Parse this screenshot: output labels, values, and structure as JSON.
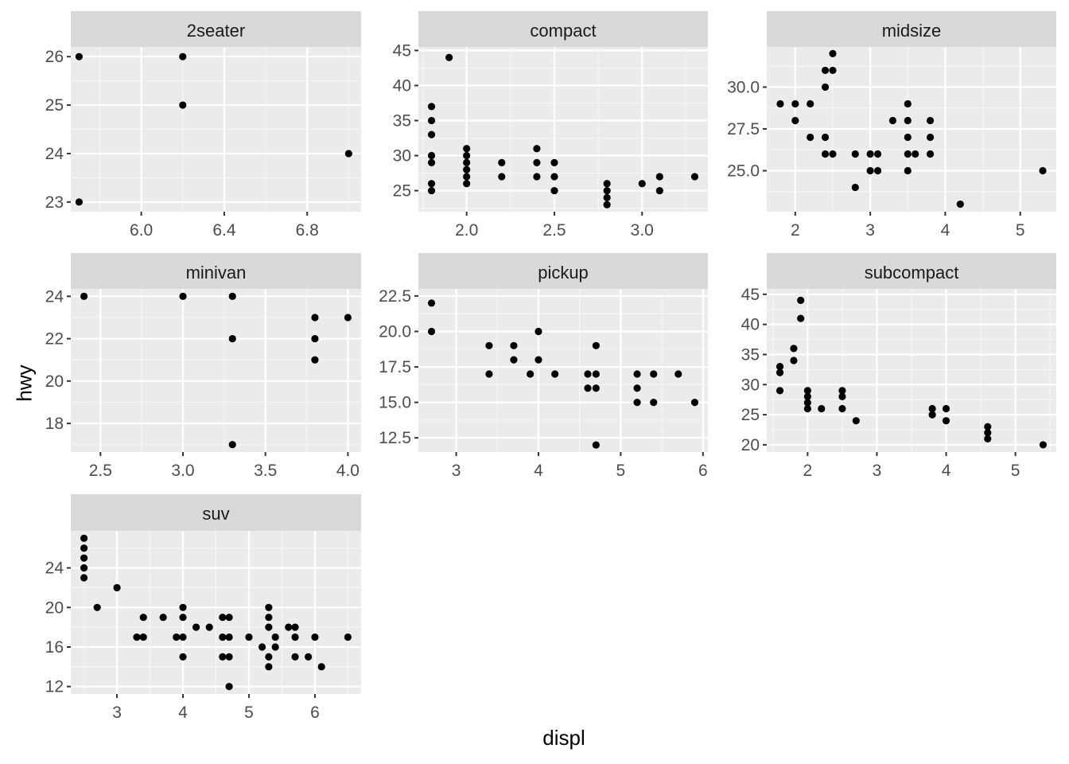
{
  "chart_data": {
    "type": "scatter",
    "layout": "facet_wrap",
    "xlabel": "displ",
    "ylabel": "hwy",
    "colors": {
      "panel_background": "#ebebeb",
      "grid_major": "#ffffff",
      "strip_background": "#d9d9d9",
      "point": "#000000",
      "tick_text": "#4d4d4d",
      "title_text": "#000000"
    },
    "panels": [
      {
        "name": "2seater",
        "xlim": [
          5.66,
          7.06
        ],
        "ylim": [
          22.8,
          26.2
        ],
        "xticks": [
          6.0,
          6.4,
          6.8
        ],
        "xtick_labels": [
          "6.0",
          "6.4",
          "6.8"
        ],
        "yticks": [
          23,
          24,
          25,
          26
        ],
        "ytick_labels": [
          "23",
          "24",
          "25",
          "26"
        ],
        "points": [
          [
            5.7,
            26
          ],
          [
            5.7,
            23
          ],
          [
            6.2,
            26
          ],
          [
            6.2,
            25
          ],
          [
            7.0,
            24
          ]
        ]
      },
      {
        "name": "compact",
        "xlim": [
          1.725,
          3.375
        ],
        "ylim": [
          22.0,
          45.5
        ],
        "xticks": [
          2.0,
          2.5,
          3.0
        ],
        "xtick_labels": [
          "2.0",
          "2.5",
          "3.0"
        ],
        "yticks": [
          25,
          30,
          35,
          40,
          45
        ],
        "ytick_labels": [
          "25",
          "30",
          "35",
          "40",
          "45"
        ],
        "points": [
          [
            1.8,
            37
          ],
          [
            1.8,
            35
          ],
          [
            1.8,
            33
          ],
          [
            1.8,
            30
          ],
          [
            1.8,
            29
          ],
          [
            1.8,
            26
          ],
          [
            1.8,
            25
          ],
          [
            1.9,
            44
          ],
          [
            2.0,
            31
          ],
          [
            2.0,
            30
          ],
          [
            2.0,
            29
          ],
          [
            2.0,
            28
          ],
          [
            2.0,
            27
          ],
          [
            2.0,
            26
          ],
          [
            2.2,
            29
          ],
          [
            2.2,
            27
          ],
          [
            2.4,
            31
          ],
          [
            2.4,
            29
          ],
          [
            2.4,
            27
          ],
          [
            2.5,
            29
          ],
          [
            2.5,
            27
          ],
          [
            2.5,
            25
          ],
          [
            2.8,
            26
          ],
          [
            2.8,
            25
          ],
          [
            2.8,
            24
          ],
          [
            2.8,
            23
          ],
          [
            3.0,
            26
          ],
          [
            3.1,
            27
          ],
          [
            3.1,
            25
          ],
          [
            3.3,
            27
          ]
        ]
      },
      {
        "name": "midsize",
        "xlim": [
          1.62,
          5.48
        ],
        "ylim": [
          22.55,
          32.4
        ],
        "xticks": [
          2,
          3,
          4,
          5
        ],
        "xtick_labels": [
          "2",
          "3",
          "4",
          "5"
        ],
        "yticks": [
          25.0,
          27.5,
          30.0
        ],
        "ytick_labels": [
          "25.0",
          "27.5",
          "30.0"
        ],
        "points": [
          [
            1.8,
            29
          ],
          [
            2.0,
            29
          ],
          [
            2.0,
            28
          ],
          [
            2.2,
            29
          ],
          [
            2.2,
            27
          ],
          [
            2.4,
            31
          ],
          [
            2.4,
            30
          ],
          [
            2.4,
            27
          ],
          [
            2.4,
            26
          ],
          [
            2.5,
            32
          ],
          [
            2.5,
            31
          ],
          [
            2.5,
            26
          ],
          [
            2.8,
            26
          ],
          [
            2.8,
            24
          ],
          [
            3.0,
            26
          ],
          [
            3.0,
            25
          ],
          [
            3.1,
            26
          ],
          [
            3.1,
            25
          ],
          [
            3.3,
            28
          ],
          [
            3.5,
            29
          ],
          [
            3.5,
            28
          ],
          [
            3.5,
            27
          ],
          [
            3.5,
            26
          ],
          [
            3.5,
            25
          ],
          [
            3.6,
            26
          ],
          [
            3.8,
            28
          ],
          [
            3.8,
            27
          ],
          [
            3.8,
            26
          ],
          [
            4.2,
            23
          ],
          [
            5.3,
            25
          ]
        ]
      },
      {
        "name": "minivan",
        "xlim": [
          2.32,
          4.08
        ],
        "ylim": [
          16.65,
          24.35
        ],
        "xticks": [
          2.5,
          3.0,
          3.5,
          4.0
        ],
        "xtick_labels": [
          "2.5",
          "3.0",
          "3.5",
          "4.0"
        ],
        "yticks": [
          18,
          20,
          22,
          24
        ],
        "ytick_labels": [
          "18",
          "20",
          "22",
          "24"
        ],
        "points": [
          [
            2.4,
            24
          ],
          [
            3.0,
            24
          ],
          [
            3.3,
            24
          ],
          [
            3.3,
            22
          ],
          [
            3.3,
            17
          ],
          [
            3.8,
            23
          ],
          [
            3.8,
            22
          ],
          [
            3.8,
            21
          ],
          [
            4.0,
            23
          ]
        ]
      },
      {
        "name": "pickup",
        "xlim": [
          2.54,
          6.06
        ],
        "ylim": [
          11.5,
          23.0
        ],
        "xticks": [
          3,
          4,
          5,
          6
        ],
        "xtick_labels": [
          "3",
          "4",
          "5",
          "6"
        ],
        "yticks": [
          12.5,
          15.0,
          17.5,
          20.0,
          22.5
        ],
        "ytick_labels": [
          "12.5",
          "15.0",
          "17.5",
          "20.0",
          "22.5"
        ],
        "points": [
          [
            2.7,
            22
          ],
          [
            2.7,
            20
          ],
          [
            3.4,
            19
          ],
          [
            3.4,
            17
          ],
          [
            3.7,
            19
          ],
          [
            3.7,
            18
          ],
          [
            3.9,
            17
          ],
          [
            4.0,
            20
          ],
          [
            4.0,
            18
          ],
          [
            4.2,
            17
          ],
          [
            4.6,
            17
          ],
          [
            4.6,
            16
          ],
          [
            4.7,
            19
          ],
          [
            4.7,
            17
          ],
          [
            4.7,
            16
          ],
          [
            4.7,
            12
          ],
          [
            5.2,
            17
          ],
          [
            5.2,
            16
          ],
          [
            5.2,
            15
          ],
          [
            5.4,
            17
          ],
          [
            5.4,
            15
          ],
          [
            5.7,
            17
          ],
          [
            5.9,
            15
          ]
        ]
      },
      {
        "name": "subcompact",
        "xlim": [
          1.41,
          5.59
        ],
        "ylim": [
          18.8,
          45.9
        ],
        "xticks": [
          2,
          3,
          4,
          5
        ],
        "xtick_labels": [
          "2",
          "3",
          "4",
          "5"
        ],
        "yticks": [
          20,
          25,
          30,
          35,
          40,
          45
        ],
        "ytick_labels": [
          "20",
          "25",
          "30",
          "35",
          "40",
          "45"
        ],
        "points": [
          [
            1.6,
            33
          ],
          [
            1.6,
            32
          ],
          [
            1.6,
            29
          ],
          [
            1.8,
            36
          ],
          [
            1.8,
            34
          ],
          [
            1.9,
            44
          ],
          [
            1.9,
            41
          ],
          [
            2.0,
            29
          ],
          [
            2.0,
            28
          ],
          [
            2.0,
            27
          ],
          [
            2.0,
            26
          ],
          [
            2.2,
            26
          ],
          [
            2.5,
            29
          ],
          [
            2.5,
            28
          ],
          [
            2.5,
            26
          ],
          [
            2.7,
            24
          ],
          [
            3.8,
            26
          ],
          [
            3.8,
            25
          ],
          [
            4.0,
            26
          ],
          [
            4.0,
            24
          ],
          [
            4.6,
            23
          ],
          [
            4.6,
            22
          ],
          [
            4.6,
            21
          ],
          [
            5.4,
            20
          ]
        ]
      },
      {
        "name": "suv",
        "xlim": [
          2.3,
          6.7
        ],
        "ylim": [
          11.25,
          27.75
        ],
        "xticks": [
          3,
          4,
          5,
          6
        ],
        "xtick_labels": [
          "3",
          "4",
          "5",
          "6"
        ],
        "yticks": [
          12,
          16,
          20,
          24
        ],
        "ytick_labels": [
          "12",
          "16",
          "20",
          "24"
        ],
        "points": [
          [
            2.5,
            27
          ],
          [
            2.5,
            26
          ],
          [
            2.5,
            25
          ],
          [
            2.5,
            24
          ],
          [
            2.5,
            23
          ],
          [
            2.7,
            20
          ],
          [
            3.0,
            22
          ],
          [
            3.3,
            17
          ],
          [
            3.4,
            19
          ],
          [
            3.4,
            17
          ],
          [
            3.7,
            19
          ],
          [
            3.9,
            17
          ],
          [
            4.0,
            20
          ],
          [
            4.0,
            19
          ],
          [
            4.0,
            17
          ],
          [
            4.0,
            15
          ],
          [
            4.2,
            18
          ],
          [
            4.4,
            18
          ],
          [
            4.6,
            19
          ],
          [
            4.6,
            17
          ],
          [
            4.6,
            15
          ],
          [
            4.7,
            19
          ],
          [
            4.7,
            17
          ],
          [
            4.7,
            15
          ],
          [
            4.7,
            12
          ],
          [
            5.0,
            17
          ],
          [
            5.2,
            16
          ],
          [
            5.3,
            20
          ],
          [
            5.3,
            19
          ],
          [
            5.3,
            18
          ],
          [
            5.3,
            15
          ],
          [
            5.3,
            14
          ],
          [
            5.4,
            17
          ],
          [
            5.4,
            16
          ],
          [
            5.6,
            18
          ],
          [
            5.7,
            18
          ],
          [
            5.7,
            17
          ],
          [
            5.7,
            15
          ],
          [
            5.9,
            15
          ],
          [
            6.0,
            17
          ],
          [
            6.1,
            14
          ],
          [
            6.5,
            17
          ]
        ]
      }
    ]
  }
}
